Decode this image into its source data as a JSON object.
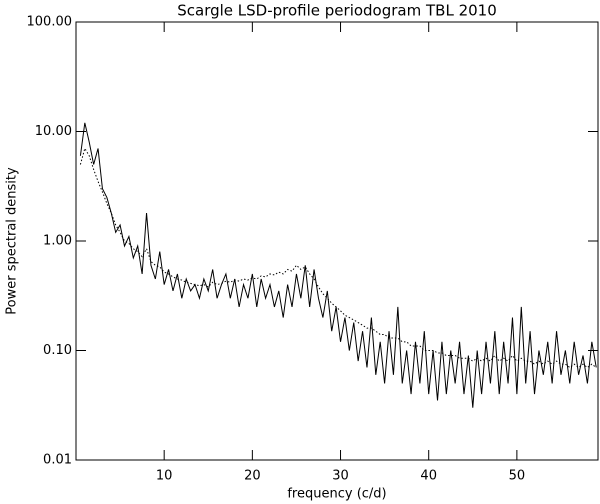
{
  "chart_data": {
    "type": "line",
    "title": "Scargle LSD-profile periodogram TBL 2010",
    "xlabel": "frequency (c/d)",
    "ylabel": "Power spectral density",
    "x": [
      0.5,
      1,
      1.5,
      2,
      2.5,
      3,
      3.5,
      4,
      4.5,
      5,
      5.5,
      6,
      6.5,
      7,
      7.5,
      8,
      8.5,
      9,
      9.5,
      10,
      10.5,
      11,
      11.5,
      12,
      12.5,
      13,
      13.5,
      14,
      14.5,
      15,
      15.5,
      16,
      16.5,
      17,
      17.5,
      18,
      18.5,
      19,
      19.5,
      20,
      20.5,
      21,
      21.5,
      22,
      22.5,
      23,
      23.5,
      24,
      24.5,
      25,
      25.5,
      26,
      26.5,
      27,
      27.5,
      28,
      28.5,
      29,
      29.5,
      30,
      30.5,
      31,
      31.5,
      32,
      32.5,
      33,
      33.5,
      34,
      34.5,
      35,
      35.5,
      36,
      36.5,
      37,
      37.5,
      38,
      38.5,
      39,
      39.5,
      40,
      40.5,
      41,
      41.5,
      42,
      42.5,
      43,
      43.5,
      44,
      44.5,
      45,
      45.5,
      46,
      46.5,
      47,
      47.5,
      48,
      48.5,
      49,
      49.5,
      50,
      50.5,
      51,
      51.5,
      52,
      52.5,
      53,
      53.5,
      54,
      54.5,
      55,
      55.5,
      56,
      56.5,
      57,
      57.5,
      58,
      58.5,
      59
    ],
    "series": [
      {
        "color": "#000000",
        "linestyle": "solid",
        "values": [
          6,
          12,
          8,
          5,
          7,
          3,
          2.5,
          1.8,
          1.2,
          1.4,
          0.9,
          1.1,
          0.7,
          0.9,
          0.5,
          1.8,
          0.6,
          0.45,
          0.8,
          0.4,
          0.55,
          0.35,
          0.5,
          0.3,
          0.45,
          0.35,
          0.4,
          0.3,
          0.45,
          0.35,
          0.55,
          0.3,
          0.4,
          0.5,
          0.3,
          0.45,
          0.25,
          0.4,
          0.3,
          0.5,
          0.25,
          0.45,
          0.3,
          0.4,
          0.25,
          0.35,
          0.2,
          0.4,
          0.25,
          0.5,
          0.3,
          0.6,
          0.25,
          0.55,
          0.3,
          0.2,
          0.35,
          0.15,
          0.25,
          0.12,
          0.2,
          0.1,
          0.18,
          0.08,
          0.15,
          0.07,
          0.2,
          0.06,
          0.12,
          0.05,
          0.15,
          0.06,
          0.25,
          0.05,
          0.1,
          0.04,
          0.12,
          0.05,
          0.15,
          0.04,
          0.1,
          0.035,
          0.12,
          0.04,
          0.1,
          0.05,
          0.12,
          0.04,
          0.09,
          0.03,
          0.1,
          0.04,
          0.12,
          0.05,
          0.15,
          0.04,
          0.12,
          0.05,
          0.2,
          0.04,
          0.25,
          0.05,
          0.15,
          0.04,
          0.1,
          0.06,
          0.12,
          0.05,
          0.15,
          0.06,
          0.1,
          0.05,
          0.12,
          0.06,
          0.09,
          0.05,
          0.12,
          0.07
        ]
      },
      {
        "color": "#000000",
        "linestyle": "dotted",
        "values": [
          5,
          7,
          6,
          4.5,
          3.5,
          2.8,
          2.2,
          1.8,
          1.4,
          1.2,
          1.0,
          0.95,
          0.85,
          0.8,
          0.72,
          0.85,
          0.65,
          0.6,
          0.58,
          0.52,
          0.5,
          0.47,
          0.45,
          0.44,
          0.42,
          0.41,
          0.4,
          0.39,
          0.4,
          0.38,
          0.42,
          0.4,
          0.41,
          0.43,
          0.42,
          0.44,
          0.43,
          0.45,
          0.44,
          0.46,
          0.45,
          0.48,
          0.47,
          0.5,
          0.49,
          0.52,
          0.5,
          0.55,
          0.53,
          0.6,
          0.55,
          0.58,
          0.5,
          0.45,
          0.38,
          0.33,
          0.3,
          0.27,
          0.25,
          0.23,
          0.21,
          0.2,
          0.19,
          0.18,
          0.17,
          0.16,
          0.16,
          0.15,
          0.14,
          0.14,
          0.13,
          0.13,
          0.13,
          0.12,
          0.12,
          0.11,
          0.11,
          0.11,
          0.1,
          0.1,
          0.1,
          0.095,
          0.095,
          0.09,
          0.09,
          0.09,
          0.085,
          0.085,
          0.085,
          0.08,
          0.085,
          0.08,
          0.085,
          0.08,
          0.09,
          0.08,
          0.085,
          0.08,
          0.09,
          0.08,
          0.085,
          0.08,
          0.08,
          0.075,
          0.08,
          0.075,
          0.08,
          0.075,
          0.08,
          0.075,
          0.075,
          0.07,
          0.075,
          0.07,
          0.075,
          0.07,
          0.075,
          0.07
        ]
      }
    ],
    "xlim": [
      0,
      59.2
    ],
    "ylim": [
      0.01,
      100
    ],
    "log_y": true,
    "grid": false,
    "xticks": [
      10,
      20,
      30,
      40,
      50
    ],
    "yticks": [
      {
        "value": 0.01,
        "label": "0.01"
      },
      {
        "value": 0.1,
        "label": "0.10"
      },
      {
        "value": 1,
        "label": "1.00"
      },
      {
        "value": 10,
        "label": "10.00"
      },
      {
        "value": 100,
        "label": "100.00"
      }
    ]
  }
}
